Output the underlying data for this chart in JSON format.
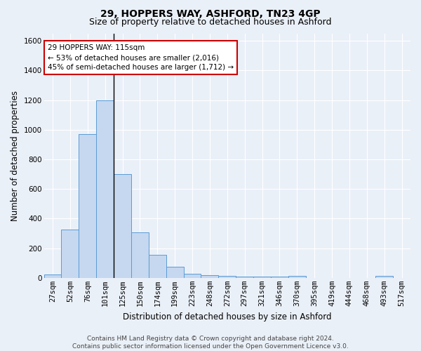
{
  "title": "29, HOPPERS WAY, ASHFORD, TN23 4GP",
  "subtitle": "Size of property relative to detached houses in Ashford",
  "xlabel": "Distribution of detached houses by size in Ashford",
  "ylabel": "Number of detached properties",
  "footer_line1": "Contains HM Land Registry data © Crown copyright and database right 2024.",
  "footer_line2": "Contains public sector information licensed under the Open Government Licence v3.0.",
  "bar_labels": [
    "27sqm",
    "52sqm",
    "76sqm",
    "101sqm",
    "125sqm",
    "150sqm",
    "174sqm",
    "199sqm",
    "223sqm",
    "248sqm",
    "272sqm",
    "297sqm",
    "321sqm",
    "346sqm",
    "370sqm",
    "395sqm",
    "419sqm",
    "444sqm",
    "468sqm",
    "493sqm",
    "517sqm"
  ],
  "bar_values": [
    25,
    325,
    970,
    1200,
    700,
    305,
    155,
    75,
    30,
    20,
    12,
    10,
    8,
    10,
    12,
    0,
    0,
    0,
    0,
    12,
    0
  ],
  "bar_color": "#c5d8f0",
  "bar_edge_color": "#5b9bd5",
  "vline_color": "#000000",
  "annotation_text": "29 HOPPERS WAY: 115sqm\n← 53% of detached houses are smaller (2,016)\n45% of semi-detached houses are larger (1,712) →",
  "annotation_box_color": "#ffffff",
  "annotation_box_edge": "#cc0000",
  "ylim": [
    0,
    1650
  ],
  "yticks": [
    0,
    200,
    400,
    600,
    800,
    1000,
    1200,
    1400,
    1600
  ],
  "bg_color": "#eaf0f8",
  "grid_color": "#ffffff",
  "title_fontsize": 10,
  "subtitle_fontsize": 9,
  "label_fontsize": 8.5,
  "tick_fontsize": 7.5,
  "footer_fontsize": 6.5
}
